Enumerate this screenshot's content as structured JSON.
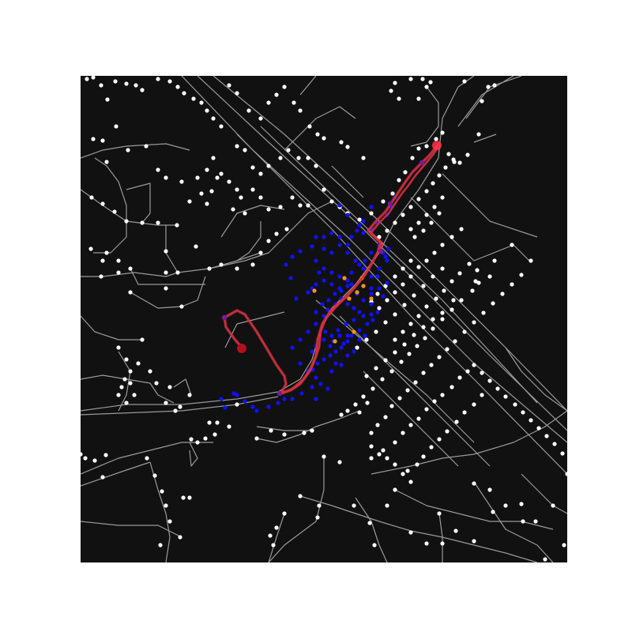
{
  "map": {
    "background_color": "#111111",
    "street_color": "#9a9a9a",
    "node_color": "#ffffff",
    "route": {
      "line_color": "#d42a3a",
      "glow_color": "#ff5566",
      "start_marker_color": "#b0101e",
      "end_marker_color": "#ff3344"
    },
    "highlight_nodes": {
      "explored_color": "#1111ff",
      "frontier_color": "#ff9900",
      "on_route_color": "#7a1a9a"
    }
  }
}
